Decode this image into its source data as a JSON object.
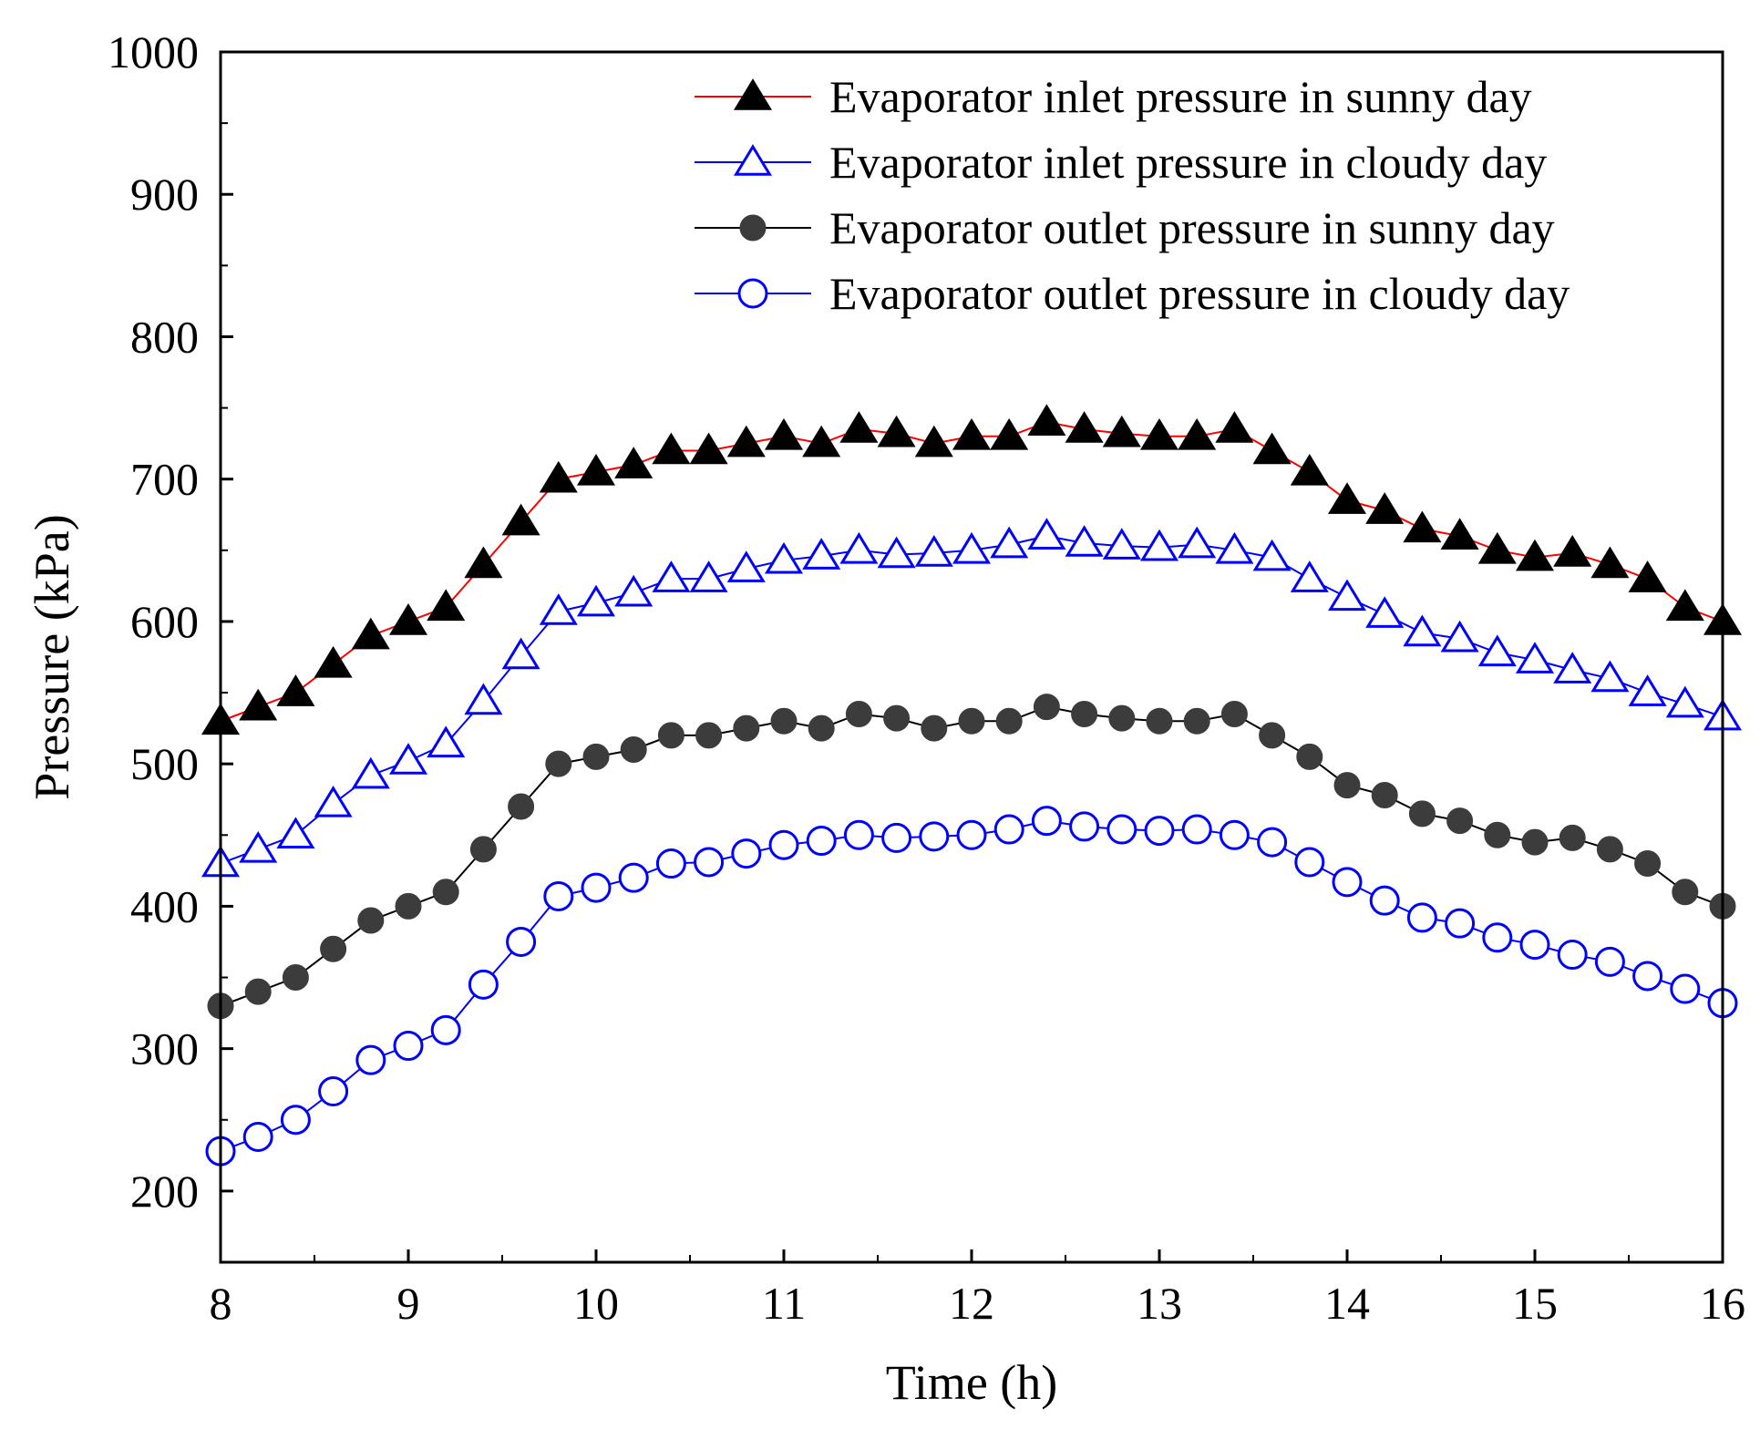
{
  "chart_data": {
    "type": "line",
    "title": "",
    "xlabel": "Time (h)",
    "ylabel": "Pressure (kPa)",
    "xlim": [
      8,
      16
    ],
    "ylim": [
      150,
      1000
    ],
    "xticks": [
      "8",
      "9",
      "10",
      "11",
      "12",
      "13",
      "14",
      "15",
      "16"
    ],
    "yticks": [
      "200",
      "300",
      "400",
      "500",
      "600",
      "700",
      "800",
      "900",
      "1000"
    ],
    "grid": false,
    "legend_position": "top-right",
    "x": [
      8.0,
      8.2,
      8.4,
      8.6,
      8.8,
      9.0,
      9.2,
      9.4,
      9.6,
      9.8,
      10.0,
      10.2,
      10.4,
      10.6,
      10.8,
      11.0,
      11.2,
      11.4,
      11.6,
      11.8,
      12.0,
      12.2,
      12.4,
      12.6,
      12.8,
      13.0,
      13.2,
      13.4,
      13.6,
      13.8,
      14.0,
      14.2,
      14.4,
      14.6,
      14.8,
      15.0,
      15.2,
      15.4,
      15.6,
      15.8,
      16.0
    ],
    "series": [
      {
        "name": "Evaporator inlet pressure in sunny day",
        "marker": "filled-triangle",
        "line_color": "#ff0000",
        "marker_color": "#000000",
        "values": [
          530,
          540,
          550,
          570,
          590,
          600,
          610,
          640,
          670,
          700,
          705,
          710,
          720,
          720,
          725,
          730,
          725,
          735,
          732,
          725,
          730,
          730,
          740,
          735,
          732,
          730,
          730,
          735,
          720,
          705,
          685,
          678,
          665,
          660,
          650,
          645,
          648,
          640,
          630,
          610,
          600
        ]
      },
      {
        "name": "Evaporator inlet pressure in cloudy day",
        "marker": "open-triangle",
        "line_color": "#0000ff",
        "marker_color": "#0000ff",
        "values": [
          430,
          440,
          450,
          472,
          492,
          502,
          514,
          544,
          576,
          607,
          613,
          620,
          630,
          630,
          637,
          643,
          646,
          650,
          647,
          648,
          650,
          654,
          660,
          655,
          653,
          652,
          654,
          650,
          645,
          630,
          617,
          605,
          592,
          588,
          578,
          573,
          566,
          560,
          550,
          542,
          533
        ]
      },
      {
        "name": "Evaporator outlet pressure in sunny day",
        "marker": "filled-circle",
        "line_color": "#000000",
        "marker_color": "#3c3c3c",
        "values": [
          330,
          340,
          350,
          370,
          390,
          400,
          410,
          440,
          470,
          500,
          505,
          510,
          520,
          520,
          525,
          530,
          525,
          535,
          532,
          525,
          530,
          530,
          540,
          535,
          532,
          530,
          530,
          535,
          520,
          505,
          485,
          478,
          465,
          460,
          450,
          445,
          448,
          440,
          430,
          410,
          400
        ]
      },
      {
        "name": "Evaporator outlet pressure in cloudy day",
        "marker": "open-circle",
        "line_color": "#0000ff",
        "marker_color": "#0000ff",
        "values": [
          228,
          238,
          250,
          270,
          292,
          302,
          313,
          345,
          375,
          407,
          413,
          420,
          430,
          431,
          437,
          443,
          446,
          450,
          448,
          449,
          450,
          454,
          460,
          456,
          454,
          453,
          454,
          450,
          445,
          431,
          417,
          404,
          392,
          388,
          378,
          373,
          366,
          361,
          351,
          342,
          332
        ]
      }
    ]
  }
}
